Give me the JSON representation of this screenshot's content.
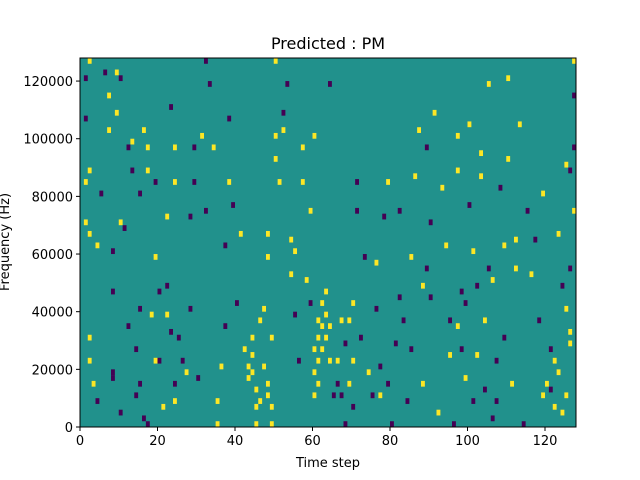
{
  "chart_data": {
    "type": "heatmap",
    "title": "Predicted : PM",
    "xlabel": "Time step",
    "ylabel": "Frequency (Hz)",
    "xlim": [
      0,
      128
    ],
    "ylim": [
      0,
      128000
    ],
    "xticks": [
      0,
      20,
      40,
      60,
      80,
      100,
      120
    ],
    "yticks": [
      0,
      20000,
      40000,
      60000,
      80000,
      100000,
      120000
    ],
    "bin_width_hz": 2000,
    "values_legend": {
      "-1": "low",
      "0": "neutral",
      "1": "high"
    },
    "colors": {
      "low": "#440154",
      "neutral": "#21918c",
      "high": "#fde725"
    },
    "cells": [
      [
        1,
        120000,
        -1
      ],
      [
        1,
        106000,
        -1
      ],
      [
        2,
        126000,
        1
      ],
      [
        2,
        88000,
        1
      ],
      [
        1,
        84000,
        1
      ],
      [
        1,
        70000,
        1
      ],
      [
        2,
        66000,
        1
      ],
      [
        4,
        62000,
        1
      ],
      [
        2,
        30000,
        1
      ],
      [
        2,
        22000,
        1
      ],
      [
        3,
        14000,
        1
      ],
      [
        4,
        8000,
        -1
      ],
      [
        5,
        80000,
        -1
      ],
      [
        6,
        122000,
        -1
      ],
      [
        7,
        114000,
        1
      ],
      [
        7,
        102000,
        1
      ],
      [
        8,
        18000,
        -1
      ],
      [
        8,
        16000,
        -1
      ],
      [
        8,
        60000,
        -1
      ],
      [
        9,
        108000,
        1
      ],
      [
        8,
        46000,
        -1
      ],
      [
        9,
        122000,
        1
      ],
      [
        10,
        120000,
        -1
      ],
      [
        10,
        70000,
        1
      ],
      [
        10,
        4000,
        -1
      ],
      [
        11,
        68000,
        -1
      ],
      [
        12,
        34000,
        -1
      ],
      [
        12,
        96000,
        -1
      ],
      [
        13,
        98000,
        1
      ],
      [
        13,
        88000,
        -1
      ],
      [
        14,
        26000,
        -1
      ],
      [
        14,
        10000,
        -1
      ],
      [
        15,
        80000,
        -1
      ],
      [
        15,
        40000,
        -1
      ],
      [
        15,
        14000,
        -1
      ],
      [
        16,
        102000,
        1
      ],
      [
        17,
        96000,
        1
      ],
      [
        17,
        88000,
        1
      ],
      [
        16,
        2000,
        -1
      ],
      [
        17,
        0,
        -1
      ],
      [
        18,
        38000,
        1
      ],
      [
        19,
        58000,
        1
      ],
      [
        19,
        84000,
        -1
      ],
      [
        19,
        22000,
        1
      ],
      [
        20,
        22000,
        -1
      ],
      [
        20,
        46000,
        -1
      ],
      [
        21,
        6000,
        1
      ],
      [
        22,
        48000,
        -1
      ],
      [
        22,
        38000,
        1
      ],
      [
        22,
        72000,
        1
      ],
      [
        23,
        32000,
        -1
      ],
      [
        23,
        110000,
        -1
      ],
      [
        24,
        84000,
        1
      ],
      [
        24,
        96000,
        1
      ],
      [
        24,
        14000,
        -1
      ],
      [
        24,
        8000,
        1
      ],
      [
        25,
        30000,
        -1
      ],
      [
        26,
        22000,
        -1
      ],
      [
        27,
        18000,
        1
      ],
      [
        28,
        40000,
        -1
      ],
      [
        28,
        72000,
        -1
      ],
      [
        29,
        96000,
        -1
      ],
      [
        29,
        84000,
        -1
      ],
      [
        30,
        16000,
        -1
      ],
      [
        31,
        100000,
        1
      ],
      [
        32,
        126000,
        -1
      ],
      [
        32,
        74000,
        -1
      ],
      [
        33,
        118000,
        -1
      ],
      [
        34,
        96000,
        1
      ],
      [
        35,
        8000,
        1
      ],
      [
        35,
        0,
        1
      ],
      [
        36,
        20000,
        1
      ],
      [
        37,
        34000,
        -1
      ],
      [
        37,
        62000,
        -1
      ],
      [
        38,
        106000,
        -1
      ],
      [
        38,
        84000,
        1
      ],
      [
        39,
        76000,
        -1
      ],
      [
        40,
        42000,
        -1
      ],
      [
        41,
        66000,
        1
      ],
      [
        42,
        26000,
        1
      ],
      [
        43,
        20000,
        1
      ],
      [
        43,
        16000,
        1
      ],
      [
        44,
        30000,
        1
      ],
      [
        44,
        24000,
        1
      ],
      [
        44,
        18000,
        1
      ],
      [
        45,
        12000,
        1
      ],
      [
        45,
        6000,
        1
      ],
      [
        45,
        0,
        1
      ],
      [
        46,
        8000,
        1
      ],
      [
        46,
        36000,
        1
      ],
      [
        47,
        20000,
        1
      ],
      [
        47,
        40000,
        1
      ],
      [
        48,
        58000,
        1
      ],
      [
        48,
        66000,
        1
      ],
      [
        48,
        14000,
        1
      ],
      [
        48,
        10000,
        1
      ],
      [
        49,
        30000,
        1
      ],
      [
        49,
        0,
        1
      ],
      [
        49,
        6000,
        1
      ],
      [
        50,
        100000,
        1
      ],
      [
        50,
        92000,
        1
      ],
      [
        50,
        126000,
        1
      ],
      [
        51,
        84000,
        1
      ],
      [
        52,
        102000,
        1
      ],
      [
        52,
        108000,
        -1
      ],
      [
        53,
        118000,
        -1
      ],
      [
        54,
        64000,
        1
      ],
      [
        54,
        52000,
        1
      ],
      [
        55,
        60000,
        1
      ],
      [
        55,
        38000,
        -1
      ],
      [
        56,
        22000,
        -1
      ],
      [
        57,
        96000,
        1
      ],
      [
        57,
        84000,
        1
      ],
      [
        58,
        50000,
        1
      ],
      [
        59,
        74000,
        1
      ],
      [
        59,
        42000,
        -1
      ],
      [
        60,
        100000,
        1
      ],
      [
        60,
        26000,
        1
      ],
      [
        60,
        18000,
        1
      ],
      [
        60,
        10000,
        1
      ],
      [
        61,
        36000,
        1
      ],
      [
        61,
        30000,
        1
      ],
      [
        61,
        22000,
        1
      ],
      [
        61,
        14000,
        1
      ],
      [
        62,
        42000,
        1
      ],
      [
        62,
        34000,
        1
      ],
      [
        62,
        26000,
        1
      ],
      [
        63,
        46000,
        1
      ],
      [
        63,
        38000,
        1
      ],
      [
        63,
        30000,
        1
      ],
      [
        64,
        118000,
        -1
      ],
      [
        64,
        34000,
        1
      ],
      [
        64,
        22000,
        1
      ],
      [
        65,
        10000,
        -1
      ],
      [
        66,
        22000,
        1
      ],
      [
        66,
        14000,
        -1
      ],
      [
        67,
        36000,
        1
      ],
      [
        67,
        10000,
        -1
      ],
      [
        68,
        28000,
        -1
      ],
      [
        68,
        0,
        -1
      ],
      [
        69,
        36000,
        1
      ],
      [
        69,
        14000,
        1
      ],
      [
        70,
        42000,
        1
      ],
      [
        70,
        22000,
        1
      ],
      [
        70,
        6000,
        -1
      ],
      [
        71,
        84000,
        -1
      ],
      [
        71,
        74000,
        -1
      ],
      [
        72,
        30000,
        -1
      ],
      [
        73,
        58000,
        -1
      ],
      [
        74,
        18000,
        1
      ],
      [
        75,
        10000,
        -1
      ],
      [
        76,
        56000,
        1
      ],
      [
        76,
        40000,
        -1
      ],
      [
        77,
        20000,
        -1
      ],
      [
        77,
        10000,
        1
      ],
      [
        78,
        72000,
        -1
      ],
      [
        79,
        84000,
        1
      ],
      [
        79,
        14000,
        -1
      ],
      [
        80,
        0,
        -1
      ],
      [
        81,
        28000,
        -1
      ],
      [
        82,
        74000,
        -1
      ],
      [
        82,
        44000,
        -1
      ],
      [
        83,
        36000,
        -1
      ],
      [
        84,
        8000,
        -1
      ],
      [
        85,
        58000,
        1
      ],
      [
        85,
        26000,
        -1
      ],
      [
        86,
        86000,
        1
      ],
      [
        87,
        102000,
        1
      ],
      [
        88,
        48000,
        1
      ],
      [
        88,
        14000,
        1
      ],
      [
        89,
        54000,
        -1
      ],
      [
        89,
        96000,
        -1
      ],
      [
        90,
        70000,
        -1
      ],
      [
        90,
        44000,
        -1
      ],
      [
        91,
        108000,
        1
      ],
      [
        92,
        4000,
        1
      ],
      [
        93,
        82000,
        1
      ],
      [
        94,
        62000,
        1
      ],
      [
        95,
        36000,
        -1
      ],
      [
        95,
        24000,
        1
      ],
      [
        96,
        0,
        -1
      ],
      [
        97,
        100000,
        1
      ],
      [
        97,
        88000,
        1
      ],
      [
        97,
        34000,
        1
      ],
      [
        98,
        46000,
        -1
      ],
      [
        98,
        26000,
        -1
      ],
      [
        99,
        42000,
        -1
      ],
      [
        99,
        16000,
        1
      ],
      [
        100,
        104000,
        1
      ],
      [
        100,
        76000,
        -1
      ],
      [
        101,
        60000,
        1
      ],
      [
        101,
        8000,
        -1
      ],
      [
        102,
        48000,
        -1
      ],
      [
        102,
        24000,
        1
      ],
      [
        103,
        94000,
        1
      ],
      [
        103,
        86000,
        1
      ],
      [
        104,
        36000,
        1
      ],
      [
        104,
        12000,
        -1
      ],
      [
        105,
        118000,
        1
      ],
      [
        105,
        54000,
        -1
      ],
      [
        106,
        50000,
        1
      ],
      [
        106,
        2000,
        -1
      ],
      [
        107,
        22000,
        -1
      ],
      [
        107,
        8000,
        -1
      ],
      [
        108,
        82000,
        -1
      ],
      [
        109,
        62000,
        1
      ],
      [
        109,
        30000,
        -1
      ],
      [
        110,
        120000,
        1
      ],
      [
        110,
        92000,
        1
      ],
      [
        111,
        14000,
        1
      ],
      [
        112,
        54000,
        1
      ],
      [
        112,
        64000,
        1
      ],
      [
        113,
        104000,
        1
      ],
      [
        114,
        0,
        -1
      ],
      [
        115,
        74000,
        -1
      ],
      [
        116,
        52000,
        1
      ],
      [
        117,
        64000,
        -1
      ],
      [
        118,
        36000,
        -1
      ],
      [
        119,
        80000,
        1
      ],
      [
        119,
        10000,
        1
      ],
      [
        120,
        14000,
        1
      ],
      [
        121,
        26000,
        -1
      ],
      [
        121,
        12000,
        -1
      ],
      [
        122,
        22000,
        1
      ],
      [
        122,
        6000,
        1
      ],
      [
        123,
        66000,
        1
      ],
      [
        123,
        18000,
        1
      ],
      [
        124,
        48000,
        -1
      ],
      [
        124,
        4000,
        1
      ],
      [
        125,
        90000,
        1
      ],
      [
        125,
        40000,
        1
      ],
      [
        126,
        28000,
        1
      ],
      [
        126,
        32000,
        1
      ],
      [
        126,
        88000,
        -1
      ],
      [
        127,
        74000,
        1
      ],
      [
        127,
        96000,
        -1
      ],
      [
        127,
        114000,
        -1
      ],
      [
        127,
        126000,
        1
      ],
      [
        126,
        54000,
        -1
      ],
      [
        125,
        10000,
        1
      ]
    ]
  }
}
